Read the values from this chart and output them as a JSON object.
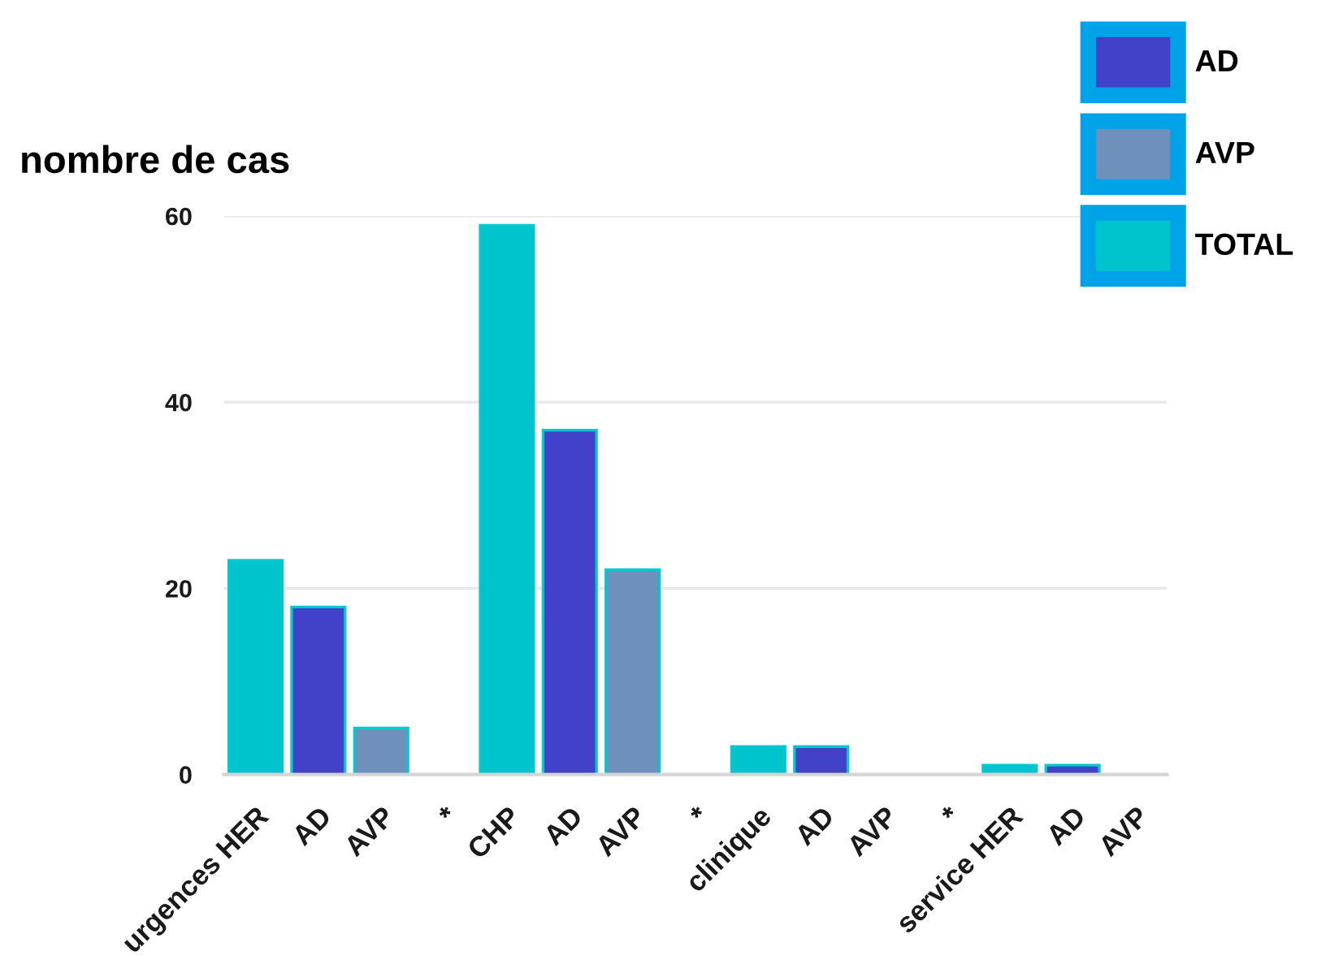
{
  "chart_data": {
    "type": "bar",
    "ylabel": "nombre de cas",
    "categories": [
      "urgences HER",
      "AD",
      "AVP",
      "*",
      "CHP",
      "AD",
      "AVP",
      "*",
      "clinique",
      "AD",
      "AVP",
      "*",
      "service HER",
      "AD",
      "AVP"
    ],
    "series": [
      {
        "name": "AD",
        "color": "#4242c8",
        "values": [
          null,
          18,
          null,
          null,
          null,
          37,
          null,
          null,
          null,
          3,
          null,
          null,
          null,
          1,
          null
        ]
      },
      {
        "name": "AVP",
        "color": "#7090bc",
        "values": [
          null,
          null,
          5,
          null,
          null,
          null,
          22,
          null,
          null,
          null,
          null,
          null,
          null,
          null,
          null
        ]
      },
      {
        "name": "TOTAL",
        "color": "#00c4cc",
        "values": [
          23,
          null,
          null,
          null,
          59,
          null,
          null,
          null,
          3,
          null,
          null,
          null,
          1,
          null,
          null
        ]
      }
    ],
    "stacked": true,
    "ylim": [
      0,
      60
    ],
    "yticks": [
      0,
      20,
      40,
      60
    ],
    "grid": "y",
    "legend": "top right"
  }
}
